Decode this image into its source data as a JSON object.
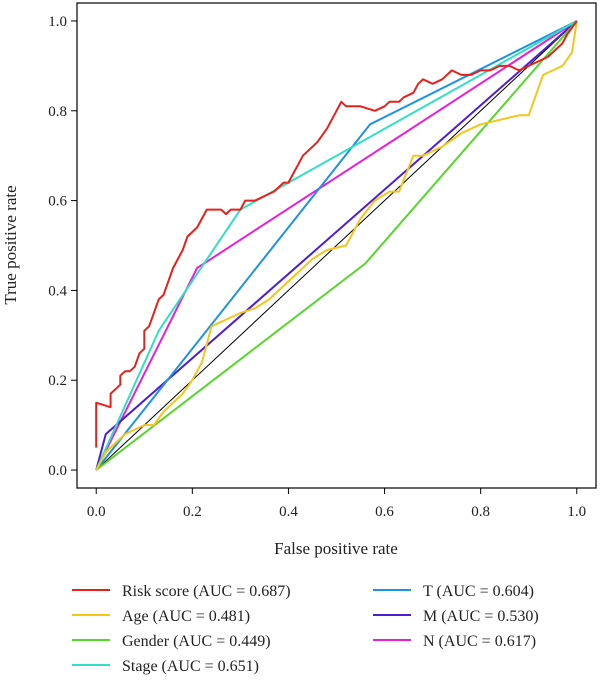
{
  "chart_data": {
    "type": "line",
    "title": "",
    "xlabel": "False positive rate",
    "ylabel": "True positive rate",
    "xlim": [
      -0.04,
      1.04
    ],
    "ylim": [
      -0.04,
      1.04
    ],
    "x_ticks": [
      0.0,
      0.2,
      0.4,
      0.6,
      0.8,
      1.0
    ],
    "y_ticks": [
      0.0,
      0.2,
      0.4,
      0.6,
      0.8,
      1.0
    ],
    "x_tick_labels": [
      "0.0",
      "0.2",
      "0.4",
      "0.6",
      "0.8",
      "1.0"
    ],
    "y_tick_labels": [
      "0.0",
      "0.2",
      "0.4",
      "0.6",
      "0.8",
      "1.0"
    ],
    "grid": false,
    "legend_placement": "below",
    "reference_line": {
      "x": [
        0,
        1
      ],
      "y": [
        0,
        1
      ],
      "color": "#000000"
    },
    "series": [
      {
        "name": "Risk score (AUC = 0.687)",
        "color": "#e8201c",
        "x": [
          0.0,
          0.0,
          0.0,
          0.03,
          0.03,
          0.05,
          0.05,
          0.06,
          0.07,
          0.08,
          0.09,
          0.1,
          0.1,
          0.11,
          0.12,
          0.13,
          0.14,
          0.15,
          0.16,
          0.17,
          0.18,
          0.19,
          0.2,
          0.21,
          0.22,
          0.23,
          0.24,
          0.26,
          0.27,
          0.28,
          0.3,
          0.31,
          0.33,
          0.35,
          0.37,
          0.38,
          0.39,
          0.4,
          0.41,
          0.42,
          0.43,
          0.45,
          0.46,
          0.48,
          0.49,
          0.5,
          0.51,
          0.52,
          0.55,
          0.58,
          0.6,
          0.61,
          0.63,
          0.64,
          0.66,
          0.67,
          0.68,
          0.7,
          0.72,
          0.74,
          0.76,
          0.78,
          0.8,
          0.82,
          0.84,
          0.86,
          0.88,
          0.9,
          0.92,
          0.94,
          0.96,
          0.97,
          0.98,
          1.0
        ],
        "y": [
          0.05,
          0.1,
          0.15,
          0.14,
          0.17,
          0.19,
          0.21,
          0.22,
          0.22,
          0.23,
          0.26,
          0.27,
          0.31,
          0.32,
          0.35,
          0.38,
          0.39,
          0.42,
          0.45,
          0.47,
          0.49,
          0.52,
          0.53,
          0.54,
          0.56,
          0.58,
          0.58,
          0.58,
          0.57,
          0.58,
          0.58,
          0.6,
          0.6,
          0.61,
          0.62,
          0.63,
          0.64,
          0.64,
          0.66,
          0.68,
          0.7,
          0.72,
          0.73,
          0.76,
          0.78,
          0.8,
          0.82,
          0.81,
          0.81,
          0.8,
          0.81,
          0.82,
          0.82,
          0.83,
          0.84,
          0.86,
          0.87,
          0.86,
          0.87,
          0.89,
          0.88,
          0.88,
          0.89,
          0.89,
          0.9,
          0.9,
          0.89,
          0.9,
          0.91,
          0.92,
          0.94,
          0.95,
          0.97,
          1.0
        ]
      },
      {
        "name": "Age (AUC = 0.481)",
        "color": "#f5c518",
        "x": [
          0.0,
          0.02,
          0.04,
          0.06,
          0.08,
          0.1,
          0.12,
          0.14,
          0.16,
          0.18,
          0.2,
          0.22,
          0.24,
          0.26,
          0.28,
          0.3,
          0.33,
          0.36,
          0.38,
          0.42,
          0.45,
          0.48,
          0.52,
          0.55,
          0.58,
          0.61,
          0.63,
          0.66,
          0.68,
          0.72,
          0.76,
          0.8,
          0.84,
          0.88,
          0.9,
          0.92,
          0.93,
          0.95,
          0.97,
          0.99,
          1.0
        ],
        "y": [
          0.0,
          0.04,
          0.06,
          0.08,
          0.09,
          0.1,
          0.1,
          0.13,
          0.15,
          0.17,
          0.2,
          0.24,
          0.32,
          0.33,
          0.34,
          0.35,
          0.36,
          0.38,
          0.4,
          0.44,
          0.47,
          0.49,
          0.5,
          0.56,
          0.6,
          0.62,
          0.62,
          0.7,
          0.7,
          0.72,
          0.75,
          0.77,
          0.78,
          0.79,
          0.79,
          0.85,
          0.88,
          0.89,
          0.9,
          0.93,
          1.0
        ]
      },
      {
        "name": "Gender (AUC = 0.449)",
        "color": "#55d62a",
        "x": [
          0.0,
          0.56,
          1.0
        ],
        "y": [
          0.0,
          0.46,
          1.0
        ]
      },
      {
        "name": "Stage (AUC = 0.651)",
        "color": "#2fe0c4",
        "x": [
          0.0,
          0.13,
          0.3,
          1.0
        ],
        "y": [
          0.0,
          0.31,
          0.58,
          1.0
        ]
      },
      {
        "name": "T (AUC = 0.604)",
        "color": "#1d93e2",
        "x": [
          0.0,
          0.57,
          1.0
        ],
        "y": [
          0.0,
          0.77,
          1.0
        ]
      },
      {
        "name": "M (AUC = 0.530)",
        "color": "#4b1fd0",
        "x": [
          0.0,
          0.02,
          1.0
        ],
        "y": [
          0.0,
          0.08,
          1.0
        ]
      },
      {
        "name": "N (AUC = 0.617)",
        "color": "#ea1fd6",
        "x": [
          0.0,
          0.21,
          1.0
        ],
        "y": [
          0.0,
          0.45,
          1.0
        ]
      }
    ]
  }
}
